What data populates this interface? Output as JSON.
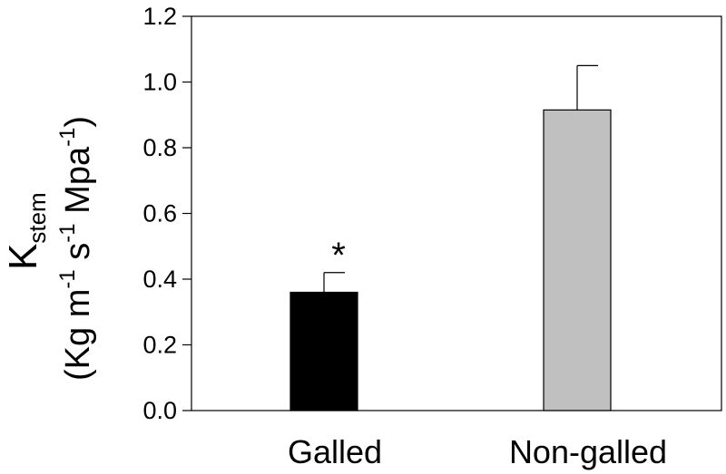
{
  "chart_data": {
    "type": "bar",
    "categories": [
      "Galled",
      "Non-galled"
    ],
    "values": [
      0.36,
      0.915
    ],
    "errors": [
      0.06,
      0.135
    ],
    "colors": [
      "#000000",
      "#c0c0c0"
    ],
    "annotations": [
      "*",
      ""
    ],
    "ylim": [
      0,
      1.2
    ],
    "yticks": [
      "0.0",
      "0.2",
      "0.4",
      "0.6",
      "0.8",
      "1.0",
      "1.2"
    ],
    "ylabel": {
      "k": "K",
      "k_sub": "stem",
      "open": "(Kg m",
      "exp1": "-1",
      "mid1": " s",
      "exp2": "-1",
      "mid2": " Mpa",
      "exp3": "-1",
      "close": ")"
    },
    "title": "",
    "xlabel": "",
    "grid": false,
    "legend": false
  }
}
